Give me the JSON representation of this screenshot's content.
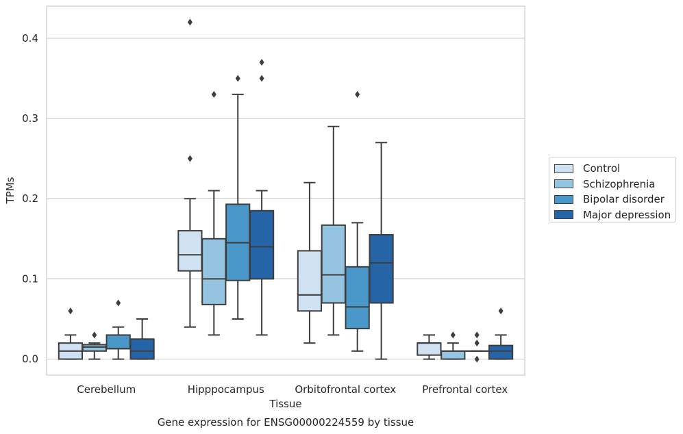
{
  "chart_data": {
    "type": "box",
    "title": "Gene expression for ENSG00000224559 by tissue",
    "xlabel": "Tissue",
    "ylabel": "TPMs",
    "ylim": [
      -0.02,
      0.44
    ],
    "yticks": [
      "0.0",
      "0.1",
      "0.2",
      "0.3",
      "0.4"
    ],
    "grid": "horizontal",
    "legend_position": "right",
    "categories": [
      "Cerebellum",
      "Hipppocampus",
      "Orbitofrontal cortex",
      "Prefrontal cortex"
    ],
    "series": [
      {
        "name": "Control",
        "color": "#d0e1f2",
        "boxes": [
          {
            "whislo": 0.0,
            "q1": 0.0,
            "med": 0.01,
            "q3": 0.02,
            "whishi": 0.03,
            "fliers": [
              0.06
            ]
          },
          {
            "whislo": 0.04,
            "q1": 0.11,
            "med": 0.13,
            "q3": 0.16,
            "whishi": 0.2,
            "fliers": [
              0.25,
              0.42
            ]
          },
          {
            "whislo": 0.02,
            "q1": 0.06,
            "med": 0.08,
            "q3": 0.135,
            "whishi": 0.22,
            "fliers": []
          },
          {
            "whislo": 0.0,
            "q1": 0.005,
            "med": 0.02,
            "q3": 0.02,
            "whishi": 0.03,
            "fliers": []
          }
        ]
      },
      {
        "name": "Schizophrenia",
        "color": "#94c4df",
        "boxes": [
          {
            "whislo": 0.0,
            "q1": 0.01,
            "med": 0.015,
            "q3": 0.018,
            "whishi": 0.02,
            "fliers": [
              0.03
            ]
          },
          {
            "whislo": 0.03,
            "q1": 0.068,
            "med": 0.1,
            "q3": 0.15,
            "whishi": 0.21,
            "fliers": [
              0.33
            ]
          },
          {
            "whislo": 0.03,
            "q1": 0.07,
            "med": 0.105,
            "q3": 0.167,
            "whishi": 0.29,
            "fliers": []
          },
          {
            "whislo": 0.0,
            "q1": 0.0,
            "med": 0.01,
            "q3": 0.01,
            "whishi": 0.02,
            "fliers": [
              0.03
            ]
          }
        ]
      },
      {
        "name": "Bipolar disorder",
        "color": "#4a98c9",
        "boxes": [
          {
            "whislo": 0.0,
            "q1": 0.013,
            "med": 0.013,
            "q3": 0.03,
            "whishi": 0.04,
            "fliers": [
              0.07
            ]
          },
          {
            "whislo": 0.05,
            "q1": 0.098,
            "med": 0.145,
            "q3": 0.193,
            "whishi": 0.33,
            "fliers": [
              0.35
            ]
          },
          {
            "whislo": 0.01,
            "q1": 0.038,
            "med": 0.065,
            "q3": 0.115,
            "whishi": 0.17,
            "fliers": [
              0.33
            ]
          },
          {
            "whislo": 0.01,
            "q1": 0.01,
            "med": 0.01,
            "q3": 0.01,
            "whishi": 0.01,
            "fliers": [
              0.0,
              0.02,
              0.03
            ]
          }
        ]
      },
      {
        "name": "Major depression",
        "color": "#2565a7",
        "boxes": [
          {
            "whislo": 0.0,
            "q1": 0.0,
            "med": 0.01,
            "q3": 0.025,
            "whishi": 0.05,
            "fliers": []
          },
          {
            "whislo": 0.03,
            "q1": 0.1,
            "med": 0.14,
            "q3": 0.185,
            "whishi": 0.21,
            "fliers": [
              0.35,
              0.37
            ]
          },
          {
            "whislo": 0.0,
            "q1": 0.07,
            "med": 0.12,
            "q3": 0.155,
            "whishi": 0.27,
            "fliers": []
          },
          {
            "whislo": 0.0,
            "q1": 0.0,
            "med": 0.01,
            "q3": 0.017,
            "whishi": 0.03,
            "fliers": [
              0.06
            ]
          }
        ]
      }
    ]
  }
}
